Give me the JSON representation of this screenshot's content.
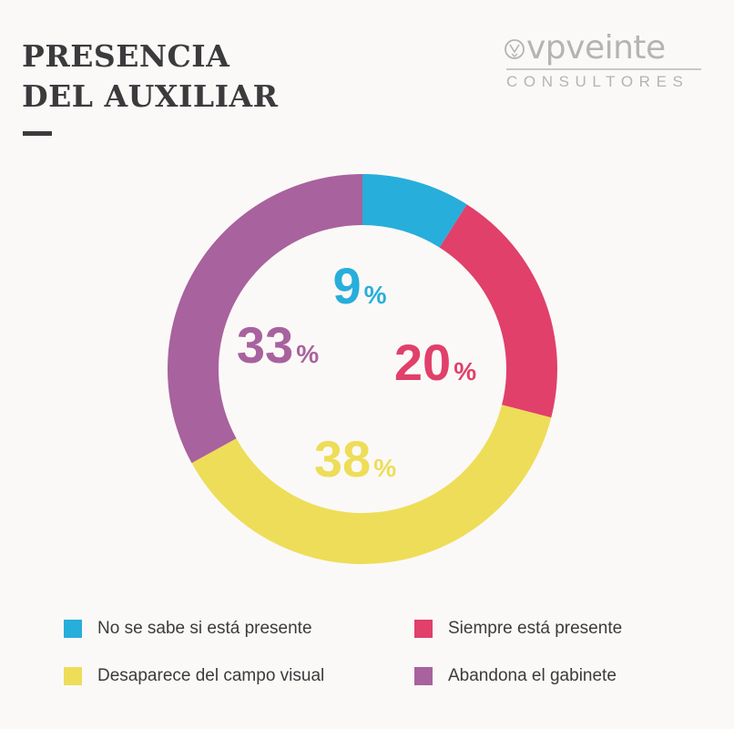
{
  "title": {
    "line1": "PRESENCIA",
    "line2": "DEL AUXILIAR"
  },
  "logo": {
    "name": "vpveinte",
    "subtitle": "CONSULTORES",
    "icon": "vp-circle-mark-icon"
  },
  "colors": {
    "background": "#fbf9f7",
    "text": "#3b3b3d",
    "logo": "#b4b4b4"
  },
  "chart_data": {
    "type": "pie",
    "donut": true,
    "start": "12 o'clock, clockwise",
    "slices": [
      {
        "name": "No se sabe si está presente",
        "value": 9,
        "color": "#27aedb",
        "label": "9",
        "unit": "%"
      },
      {
        "name": "Siempre está presente",
        "value": 20,
        "color": "#e0406a",
        "label": "20",
        "unit": "%"
      },
      {
        "name": "Desaparece del campo visual",
        "value": 38,
        "color": "#eedd58",
        "label": "38",
        "unit": "%"
      },
      {
        "name": "Abandona el gabinete",
        "value": 33,
        "color": "#a8629e",
        "label": "33",
        "unit": "%"
      }
    ],
    "legend": {
      "placement": "bottom",
      "columns": 2,
      "order": [
        0,
        1,
        2,
        3
      ]
    }
  }
}
